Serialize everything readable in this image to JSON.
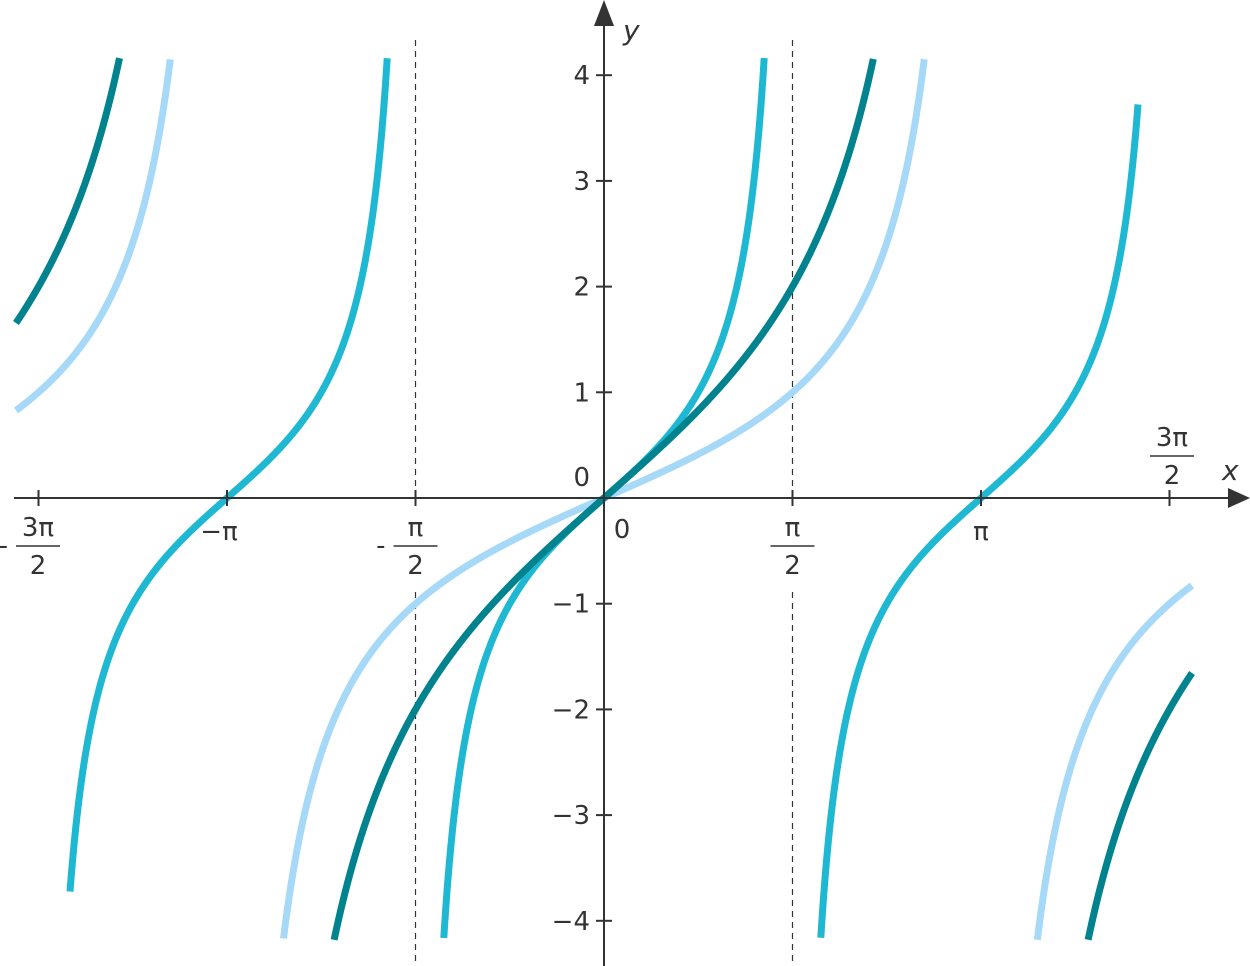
{
  "chart_data": {
    "type": "line",
    "title": "",
    "xlabel": "x",
    "ylabel": "y",
    "xlim": [
      -4.7124,
      4.7124
    ],
    "ylim": [
      -4.2,
      4.2
    ],
    "grid": false,
    "legend": "none",
    "functions": [
      {
        "expr": "tan(x/2)",
        "color": "#a6d9f7",
        "x_domain": [
          -4.9,
          4.9
        ]
      },
      {
        "expr": "tan(x)",
        "color": "#1fb8d2",
        "x_domain": [
          -4.45,
          4.45
        ]
      },
      {
        "expr": "2*tan(x/2)",
        "color": "#00838f",
        "x_domain": [
          -4.9,
          4.9
        ]
      }
    ],
    "asymptote_lines": [
      -1.5708,
      1.5708
    ],
    "y_ticks": [
      {
        "value": -4,
        "label": "−4"
      },
      {
        "value": -3,
        "label": "−3"
      },
      {
        "value": -2,
        "label": "−2"
      },
      {
        "value": -1,
        "label": "−1"
      },
      {
        "value": 1,
        "label": "1"
      },
      {
        "value": 2,
        "label": "2"
      },
      {
        "value": 3,
        "label": "3"
      },
      {
        "value": 4,
        "label": "4"
      }
    ],
    "y_zero_label": "0",
    "x_zero_label": "0",
    "x_ticks": [
      {
        "value": -4.7124,
        "kind": "frac",
        "neg": "-",
        "num": "3π",
        "den": "2"
      },
      {
        "value": -3.1416,
        "kind": "text",
        "label": "−π"
      },
      {
        "value": -1.5708,
        "kind": "frac",
        "neg": "-",
        "num": "π",
        "den": "2"
      },
      {
        "value": 1.5708,
        "kind": "frac",
        "neg": "",
        "num": "π",
        "den": "2"
      },
      {
        "value": 3.1416,
        "kind": "text",
        "label": "π"
      },
      {
        "value": 4.7124,
        "kind": "frac",
        "neg": "",
        "num": "3π",
        "den": "2"
      }
    ]
  }
}
